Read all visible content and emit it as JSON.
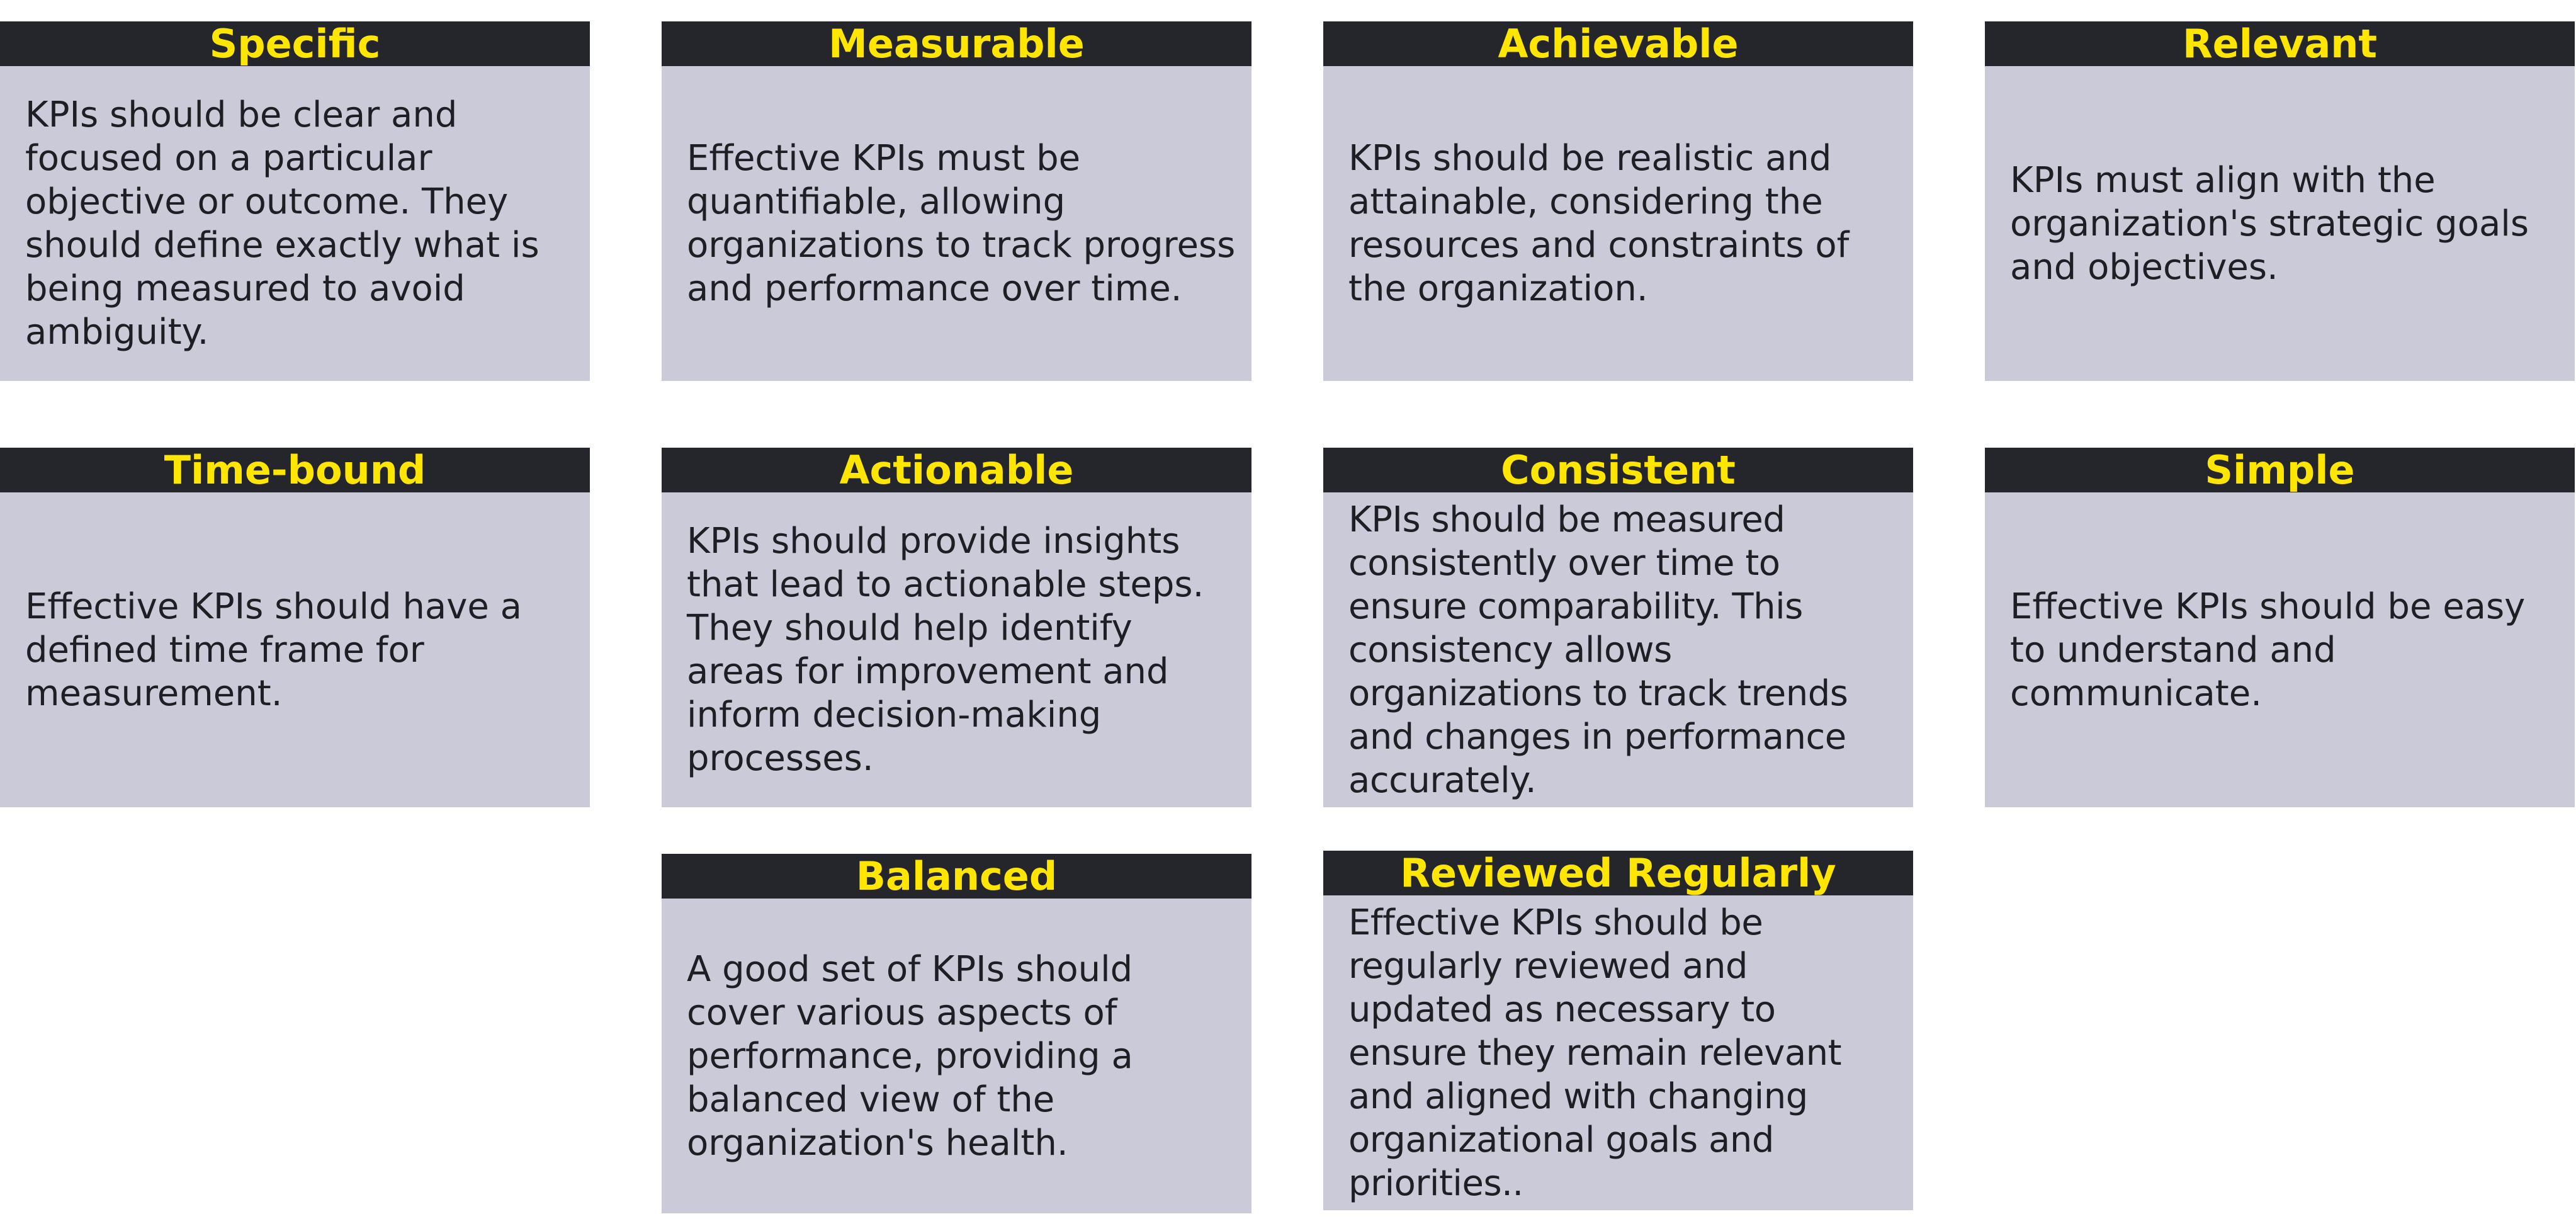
{
  "cards": [
    {
      "title": "Specific",
      "text": "KPIs should be clear and focused on a particular objective or outcome. They should define exactly what is being measured to avoid ambiguity."
    },
    {
      "title": "Measurable",
      "text": "Effective KPIs must be quantifiable, allowing organizations to track progress and performance over time."
    },
    {
      "title": "Achievable",
      "text": "KPIs should be realistic and attainable, considering the resources and constraints of the organization."
    },
    {
      "title": "Relevant",
      "text": "KPIs must align with the organization's strategic goals and objectives."
    },
    {
      "title": "Time-bound",
      "text": "Effective KPIs should have a defined time frame for measurement."
    },
    {
      "title": "Actionable",
      "text": "KPIs should provide insights that lead to actionable steps. They should help identify areas for improvement and inform decision-making processes."
    },
    {
      "title": "Consistent",
      "text": "KPIs should be measured consistently over time to ensure comparability. This consistency allows organizations to track trends and changes in performance accurately."
    },
    {
      "title": "Simple",
      "text": "Effective KPIs should be easy to understand and communicate."
    },
    {
      "title": "Balanced",
      "text": "A good set of KPIs should cover various aspects of performance, providing a balanced view of the organization's health."
    },
    {
      "title": "Reviewed Regularly",
      "text": "Effective KPIs should be regularly reviewed and updated as necessary to ensure they remain relevant and aligned with changing organizational goals and priorities.."
    }
  ],
  "colors": {
    "header_bg": "#25252c",
    "header_text": "#ffe600",
    "body_bg": "#cacad8",
    "body_text": "#1e1e25"
  }
}
